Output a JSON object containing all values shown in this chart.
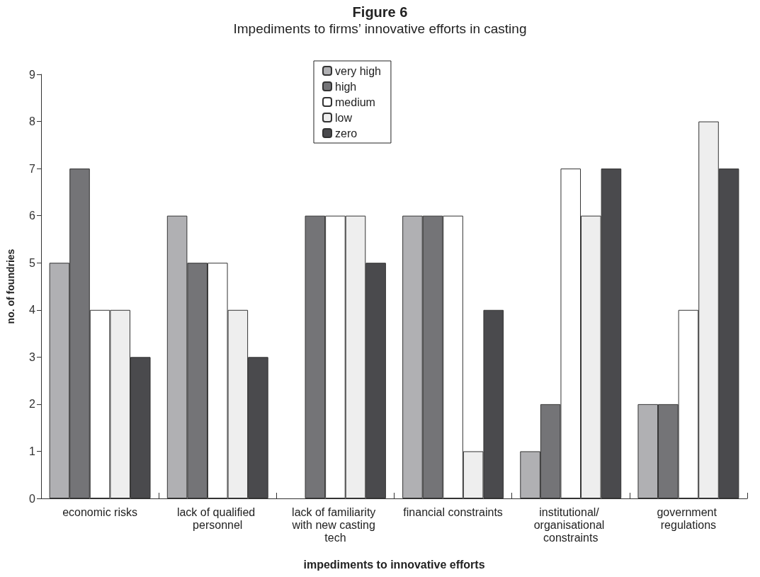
{
  "chart_data": {
    "type": "bar",
    "title": "Figure 6",
    "subtitle": "Impediments to firms’ innovative efforts in casting",
    "xlabel": "impediments to innovative efforts",
    "ylabel": "no. of foundries",
    "categories": [
      "economic risks",
      "lack of qualified personnel",
      "lack of familiarity with new casting tech",
      "financial constraints",
      "institutional/ organisational constraints",
      "government regulations"
    ],
    "series": [
      {
        "name": "very high",
        "color": "#b0b0b3",
        "values": [
          5,
          6,
          0,
          6,
          1,
          2
        ]
      },
      {
        "name": "high",
        "color": "#747477",
        "values": [
          7,
          5,
          6,
          6,
          2,
          2
        ]
      },
      {
        "name": "medium",
        "color": "#ffffff",
        "values": [
          4,
          5,
          6,
          6,
          7,
          4
        ]
      },
      {
        "name": "low",
        "color": "#eeeeee",
        "values": [
          4,
          4,
          6,
          1,
          6,
          8
        ]
      },
      {
        "name": "zero",
        "color": "#4a4a4d",
        "values": [
          3,
          3,
          5,
          4,
          7,
          7
        ]
      }
    ],
    "ylim": [
      0,
      9
    ],
    "yticks": [
      0,
      1,
      2,
      3,
      4,
      5,
      6,
      7,
      8,
      9
    ],
    "grid": false,
    "legend": "top"
  }
}
